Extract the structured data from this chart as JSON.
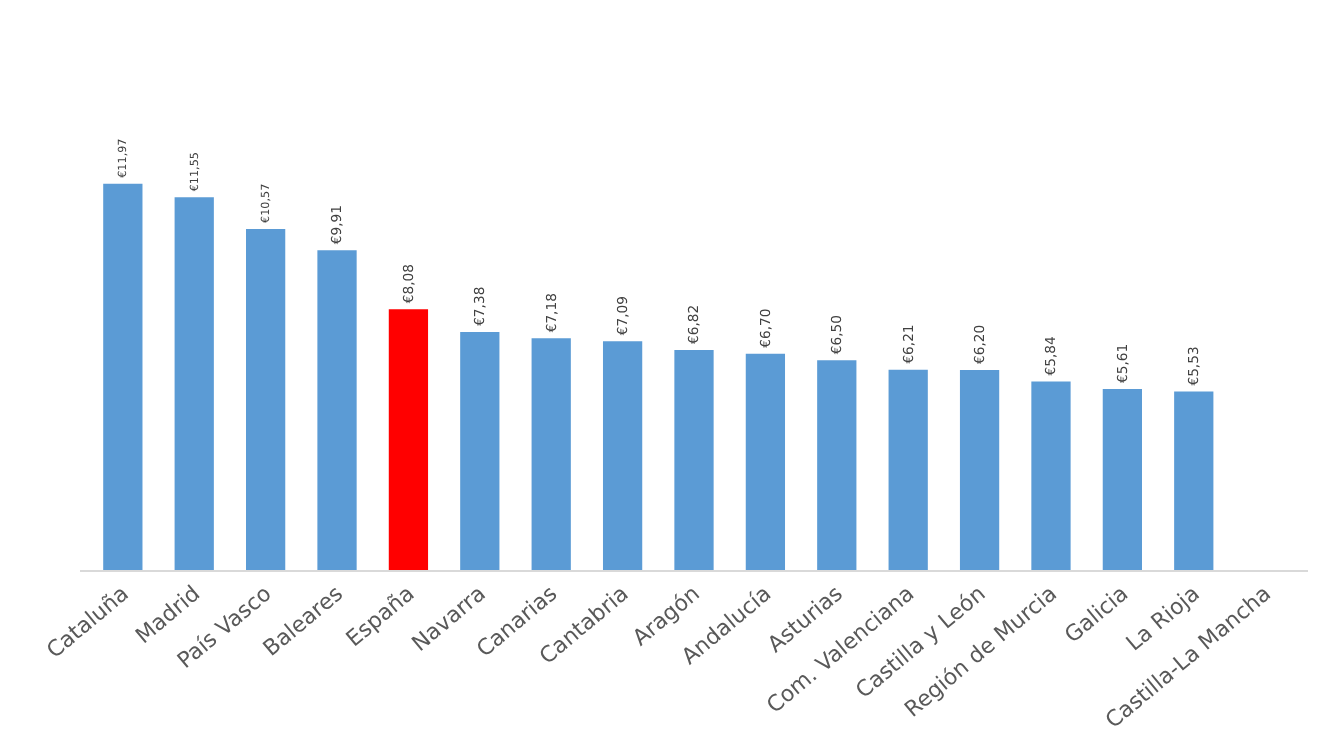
{
  "chart_data": {
    "type": "bar",
    "categories": [
      "Cataluña",
      "Madrid",
      "País Vasco",
      "Baleares",
      "España",
      "Navarra",
      "Canarias",
      "Cantabria",
      "Aragón",
      "Andalucía",
      "Asturias",
      "Com. Valenciana",
      "Castilla y León",
      "Región de Murcia",
      "Galicia",
      "La Rioja",
      "Castilla-La Mancha"
    ],
    "values": [
      11.97,
      11.55,
      10.57,
      9.91,
      8.08,
      7.38,
      7.18,
      7.09,
      6.82,
      6.7,
      6.5,
      6.21,
      6.2,
      5.84,
      5.61,
      5.53,
      null
    ],
    "colors": [
      "#5b9bd5",
      "#5b9bd5",
      "#5b9bd5",
      "#5b9bd5",
      "#ff0000",
      "#5b9bd5",
      "#5b9bd5",
      "#5b9bd5",
      "#5b9bd5",
      "#5b9bd5",
      "#5b9bd5",
      "#5b9bd5",
      "#5b9bd5",
      "#5b9bd5",
      "#5b9bd5",
      "#5b9bd5",
      "#5b9bd5"
    ],
    "value_labels": [
      "€11,97",
      "€11,55",
      "€10,57",
      "€9,91",
      "€8,08",
      "€7,38",
      "€7,18",
      "€7,09",
      "€6,82",
      "€6,70",
      "€6,50",
      "€6,21",
      "€6,20",
      "€5,84",
      "€5,61",
      "€5,53",
      null
    ],
    "relative": false
  }
}
